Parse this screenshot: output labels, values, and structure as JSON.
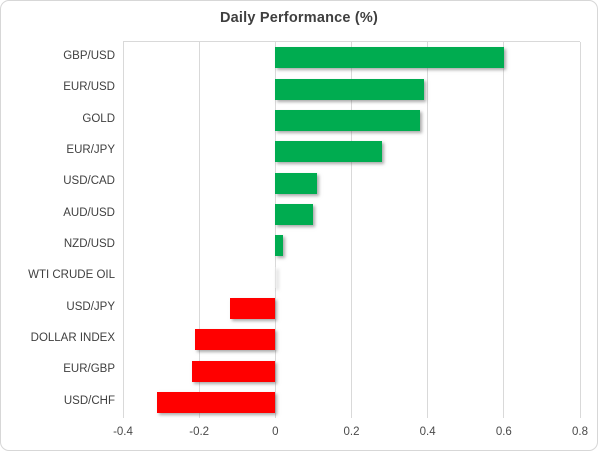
{
  "chart_data": {
    "type": "bar",
    "orientation": "horizontal",
    "title": "Daily Performance (%)",
    "categories": [
      "GBP/USD",
      "EUR/USD",
      "GOLD",
      "EUR/JPY",
      "USD/CAD",
      "AUD/USD",
      "NZD/USD",
      "WTI CRUDE OIL",
      "USD/JPY",
      "DOLLAR INDEX",
      "EUR/GBP",
      "USD/CHF"
    ],
    "values": [
      0.6,
      0.39,
      0.38,
      0.28,
      0.11,
      0.1,
      0.02,
      0.0,
      -0.12,
      -0.21,
      -0.22,
      -0.31
    ],
    "xlim": [
      -0.4,
      0.8
    ],
    "xticks": [
      -0.4,
      -0.2,
      0,
      0.2,
      0.4,
      0.6,
      0.8
    ],
    "xtick_labels": [
      "-0.4",
      "-0.2",
      "0",
      "0.2",
      "0.4",
      "0.6",
      "0.8"
    ],
    "grid": "vertical",
    "legend": "none",
    "colors": {
      "positive_bar": "#00AC50",
      "negative_bar": "#FF0000",
      "gridline": "#D9D9D9",
      "title_text": "#3F3F3F",
      "label_text": "#404040"
    }
  }
}
